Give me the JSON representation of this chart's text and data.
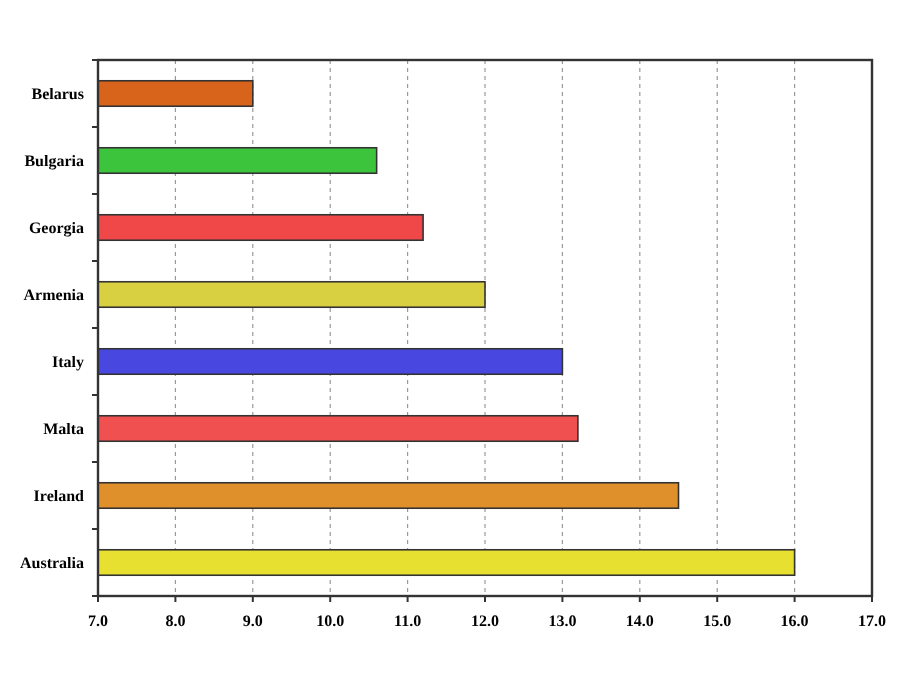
{
  "chart_data": {
    "type": "bar",
    "orientation": "horizontal",
    "categories": [
      "Belarus",
      "Bulgaria",
      "Georgia",
      "Armenia",
      "Italy",
      "Malta",
      "Ireland",
      "Australia"
    ],
    "values": [
      9.0,
      10.6,
      11.2,
      12.0,
      13.0,
      13.2,
      14.5,
      16.0
    ],
    "colors": [
      "#d8641c",
      "#3cc43c",
      "#f04848",
      "#d8d040",
      "#4848e0",
      "#f05050",
      "#e0902a",
      "#e8e030"
    ],
    "xlim": [
      7,
      17
    ],
    "xticks": [
      {
        "value": 7,
        "label": "7.0"
      },
      {
        "value": 8,
        "label": "8.0"
      },
      {
        "value": 9,
        "label": "9.0"
      },
      {
        "value": 10,
        "label": "10.0"
      },
      {
        "value": 11,
        "label": "11.0"
      },
      {
        "value": 12,
        "label": "12.0"
      },
      {
        "value": 13,
        "label": "13.0"
      },
      {
        "value": 14,
        "label": "14.0"
      },
      {
        "value": 15,
        "label": "15.0"
      },
      {
        "value": 16,
        "label": "16.0"
      },
      {
        "value": 17,
        "label": "17.0"
      }
    ],
    "grid": "x"
  }
}
